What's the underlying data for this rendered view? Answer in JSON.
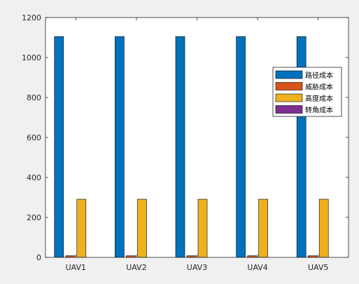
{
  "chart_data": {
    "type": "bar",
    "categories": [
      "UAV1",
      "UAV2",
      "UAV3",
      "UAV4",
      "UAV5"
    ],
    "series": [
      {
        "name": "路径成本",
        "values": [
          1105,
          1105,
          1105,
          1105,
          1105
        ],
        "color": "#0072bd"
      },
      {
        "name": "威胁成本",
        "values": [
          8,
          8,
          8,
          8,
          8
        ],
        "color": "#d95319"
      },
      {
        "name": "高度成本",
        "values": [
          291,
          291,
          291,
          291,
          291
        ],
        "color": "#edb120"
      },
      {
        "name": "转角成本",
        "values": [
          0,
          0,
          0,
          0,
          0
        ],
        "color": "#7e2f8e"
      }
    ],
    "ylim": [
      0,
      1200
    ],
    "yticks": [
      0,
      200,
      400,
      600,
      800,
      1000,
      1200
    ],
    "legend_position": "top-right",
    "grid": false,
    "title": "",
    "xlabel": "",
    "ylabel": ""
  }
}
